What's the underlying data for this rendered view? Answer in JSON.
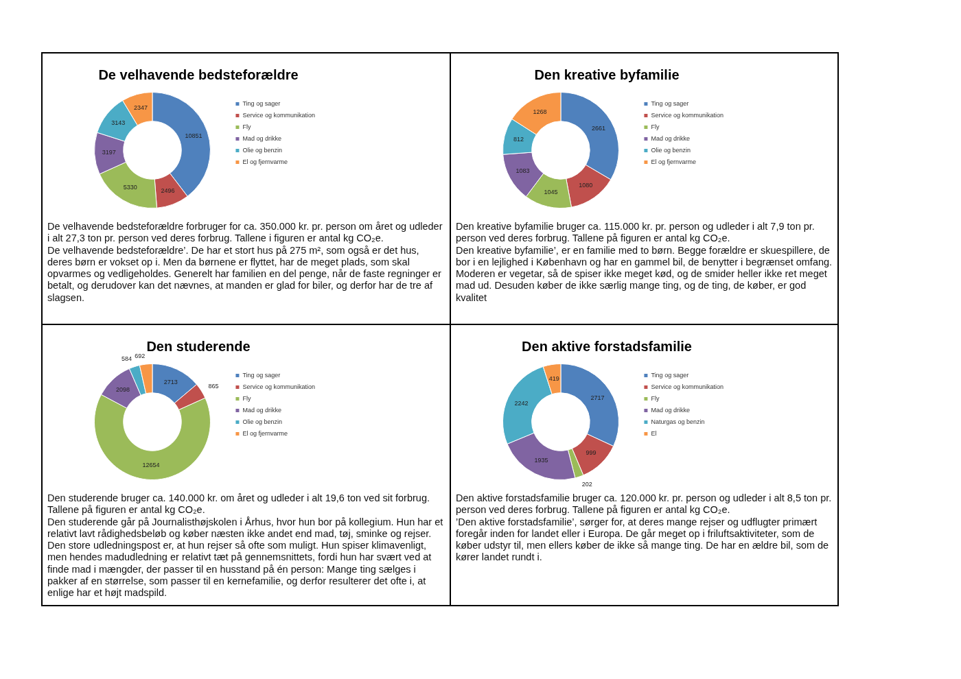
{
  "chart_data": [
    {
      "type": "donut",
      "title": "De velhavende bedsteforældre",
      "categories": [
        "Ting og sager",
        "Service og kommunikation",
        "Fly",
        "Mad og drikke",
        "Olie og benzin",
        "El og fjernvarme"
      ],
      "values": [
        10851,
        2496,
        5330,
        3197,
        3143,
        2347
      ],
      "colors": [
        "#4f81bd",
        "#c0504d",
        "#9bbb59",
        "#8064a2",
        "#4bacc6",
        "#f79646"
      ],
      "data_labels": true,
      "legend": "right",
      "annotations": [
        "De velhavende bedsteforældre forbruger for ca. 350.000 kr. pr. person om året og udleder i alt 27,3 ton pr. person ved deres forbrug. Tallene i figuren er antal kg CO₂e.\nDe velhavende bedsteforældre’. De har et stort hus på 275 m², som også er det hus, deres børn er vokset op i. Men da børnene er flyttet, har de meget plads, som skal opvarmes og vedligeholdes. Generelt har familien en del penge, når de faste regninger er betalt, og derudover kan det nævnes, at manden er glad for biler, og derfor har de tre af slagsen."
      ]
    },
    {
      "type": "donut",
      "title": "Den kreative byfamilie",
      "categories": [
        "Ting og sager",
        "Service og kommunikation",
        "Fly",
        "Mad og drikke",
        "Olie og benzin",
        "El og fjernvarme"
      ],
      "values": [
        2661,
        1080,
        1045,
        1083,
        812,
        1268
      ],
      "colors": [
        "#4f81bd",
        "#c0504d",
        "#9bbb59",
        "#8064a2",
        "#4bacc6",
        "#f79646"
      ],
      "data_labels": true,
      "legend": "right",
      "annotations": [
        "Den kreative byfamilie bruger ca. 115.000 kr. pr. person og udleder i alt 7,9 ton pr. person ved deres forbrug. Tallene på figuren er antal kg CO₂e.\nDen kreative byfamilie’, er en familie med to børn. Begge forældre er skuespillere, de bor i en lejlighed i København og har en gammel bil, de benytter i begrænset omfang. Moderen er vegetar, så de spiser ikke meget kød, og de smider heller ikke ret meget mad ud. Desuden køber de ikke særlig mange ting, og de ting, de køber, er god kvalitet"
      ]
    },
    {
      "type": "donut",
      "title": "Den studerende",
      "categories": [
        "Ting og sager",
        "Service og kommunikation",
        "Fly",
        "Mad og drikke",
        "Olie og benzin",
        "El og fjernvarme"
      ],
      "values": [
        2713,
        865,
        12654,
        2098,
        584,
        692
      ],
      "colors": [
        "#4f81bd",
        "#c0504d",
        "#9bbb59",
        "#8064a2",
        "#4bacc6",
        "#f79646"
      ],
      "data_labels": true,
      "legend": "right",
      "annotations": [
        "Den studerende bruger ca. 140.000 kr. om året og udleder i alt 19,6 ton ved sit forbrug. Tallene på figuren er antal kg CO₂e.\nDen studerende går på Journalisthøjskolen i Århus, hvor hun bor på kollegium. Hun har et relativt lavt rådighedsbeløb og køber næsten ikke andet end mad, tøj, sminke og rejser. Den store udledningspost er, at hun rejser så ofte som muligt. Hun spiser klimavenligt, men hendes madudledning er relativt tæt på gennemsnittets, fordi hun har svært ved at finde mad i mængder, der passer til en husstand på én person: Mange ting sælges i pakker af en størrelse, som passer til en kernefamilie, og derfor resulterer det ofte i, at enlige har et højt madspild."
      ]
    },
    {
      "type": "donut",
      "title": "Den aktive forstadsfamilie",
      "categories": [
        "Ting og sager",
        "Service og kommunikation",
        "Fly",
        "Mad og drikke",
        "Naturgas og benzin",
        "El"
      ],
      "values": [
        2717,
        999,
        202,
        1935,
        2242,
        419
      ],
      "colors": [
        "#4f81bd",
        "#c0504d",
        "#9bbb59",
        "#8064a2",
        "#4bacc6",
        "#f79646"
      ],
      "data_labels": true,
      "legend": "right",
      "annotations": [
        "Den aktive forstadsfamilie bruger ca. 120.000 kr. pr. person og udleder i alt 8,5 ton pr. person ved deres forbrug. Tallene på figuren er antal kg CO₂e.\n’Den aktive forstadsfamilie’, sørger for, at deres mange rejser og udflugter primært foregår inden for landet eller i Europa. De går meget op i friluftsaktiviteter, som de køber udstyr til, men ellers køber de ikke så mange ting. De har en ældre bil, som de kører landet rundt i."
      ]
    }
  ]
}
